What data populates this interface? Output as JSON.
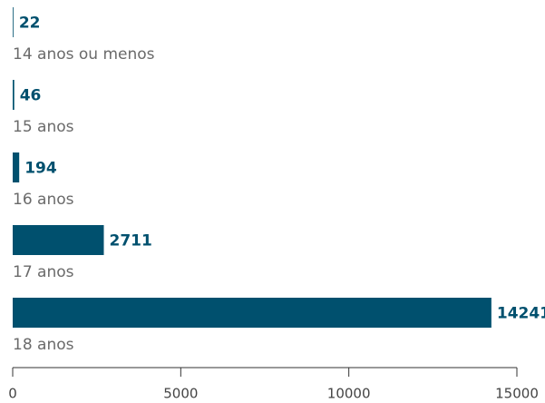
{
  "chart_data": {
    "type": "barh",
    "categories": [
      "14 anos ou menos",
      "15 anos",
      "16 anos",
      "17 anos",
      "18 anos"
    ],
    "values": [
      22,
      46,
      194,
      2711,
      14241
    ],
    "color": "#00506e",
    "xlim": [
      0,
      15000
    ],
    "xticks": [
      0,
      5000,
      10000,
      15000
    ]
  }
}
